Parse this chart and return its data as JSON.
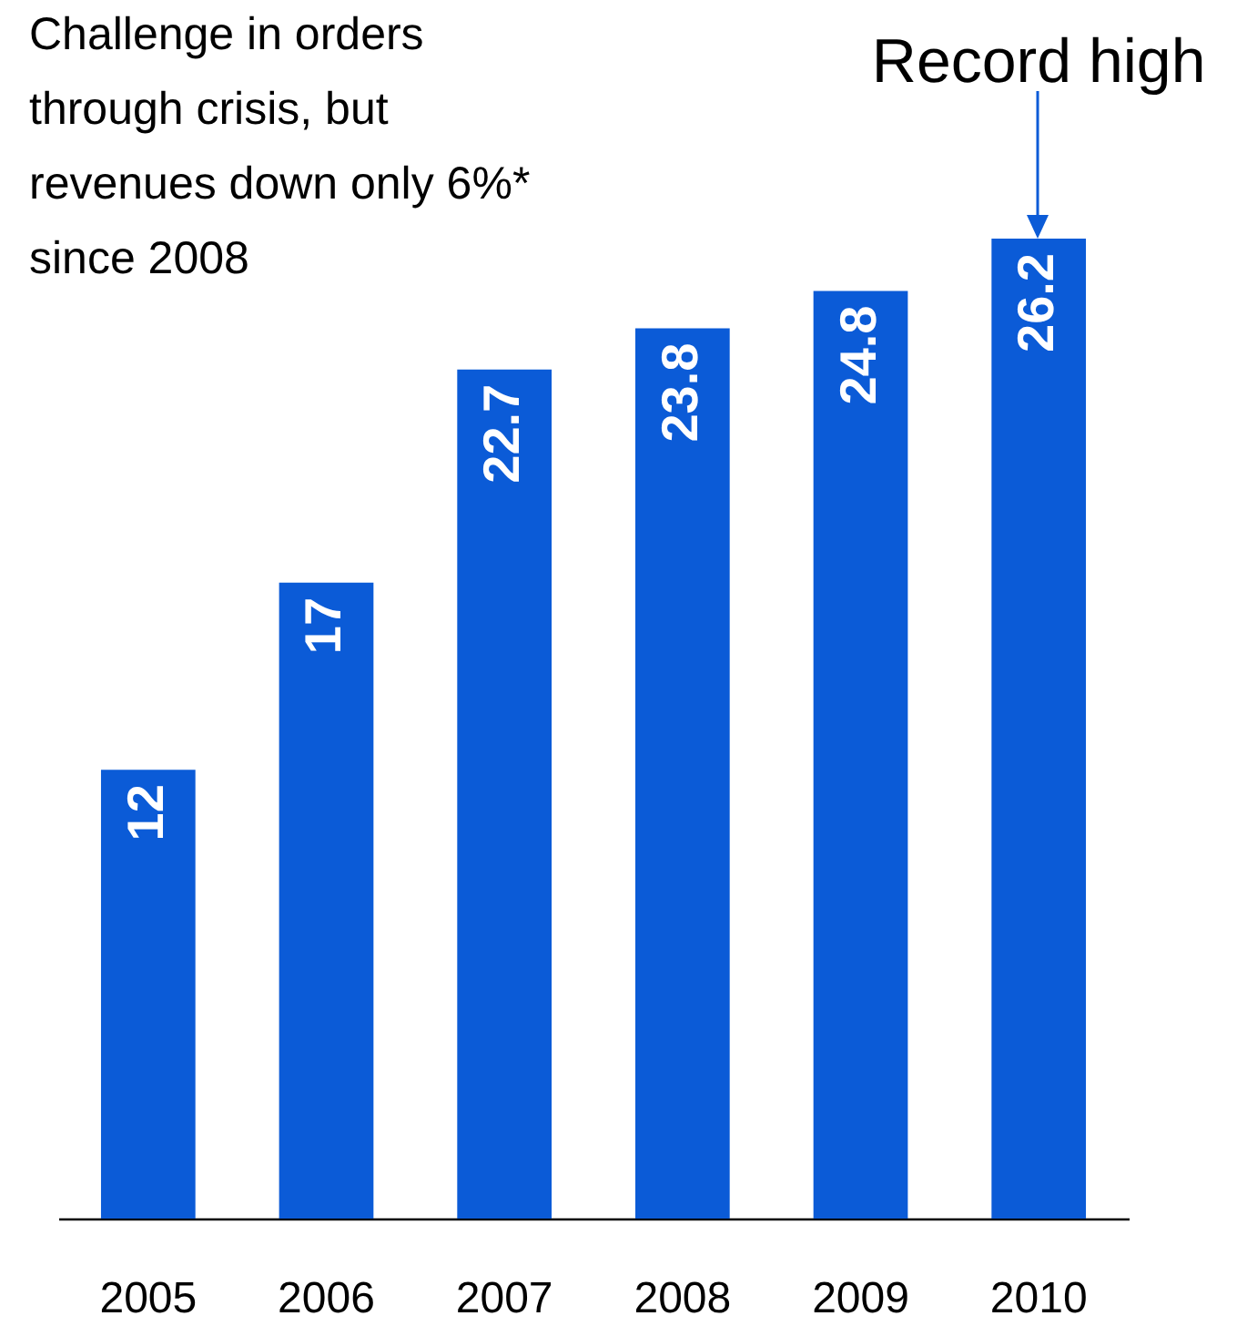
{
  "chart_data": {
    "type": "bar",
    "categories": [
      "2005",
      "2006",
      "2007",
      "2008",
      "2009",
      "2010"
    ],
    "values": [
      12,
      17,
      22.7,
      23.8,
      24.8,
      26.2
    ],
    "color": "#0b5bd7",
    "data_labels": true,
    "annotations": [
      "Challenge in orders\nthrough crisis, but\nrevenues down only 6%*\nsince 2008",
      {
        "text": "Record high",
        "x": "2010",
        "y": 26.2
      }
    ]
  }
}
